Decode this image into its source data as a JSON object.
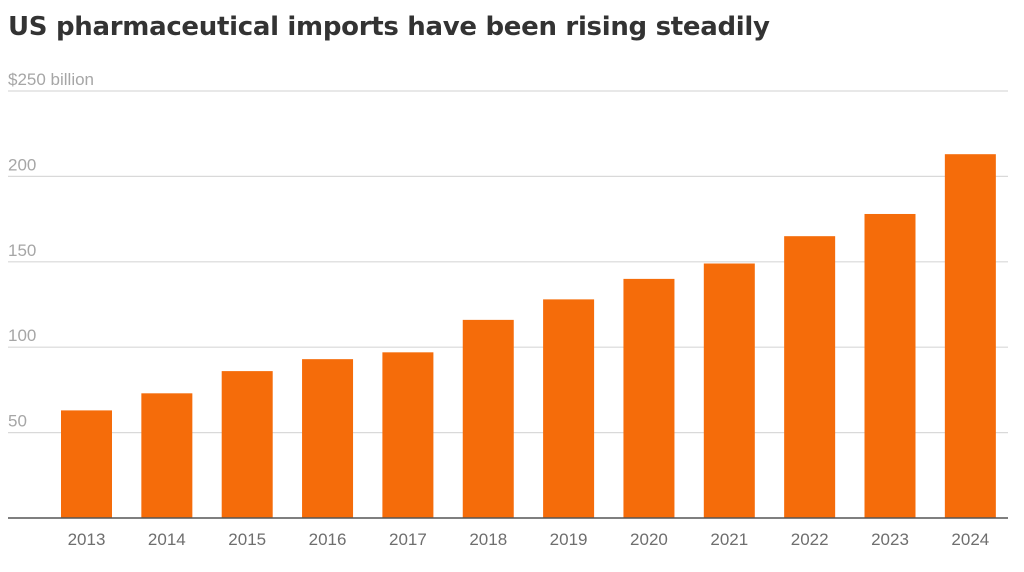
{
  "chart_data": {
    "type": "bar",
    "title": "US pharmaceutical imports have been rising steadily",
    "xlabel": "",
    "ylabel": "",
    "categories": [
      "2013",
      "2014",
      "2015",
      "2016",
      "2017",
      "2018",
      "2019",
      "2020",
      "2021",
      "2022",
      "2023",
      "2024"
    ],
    "values": [
      63,
      73,
      86,
      93,
      97,
      116,
      128,
      140,
      149,
      165,
      178,
      213
    ],
    "ylim": [
      0,
      250
    ],
    "yticks": [
      50,
      100,
      150,
      200,
      250
    ],
    "ytick_labels": [
      "50",
      "100",
      "150",
      "200",
      "$250 billion"
    ],
    "grid": true,
    "bar_color": "#f56c0a",
    "grid_color": "#d9d9d9",
    "axis_color": "#555555"
  }
}
